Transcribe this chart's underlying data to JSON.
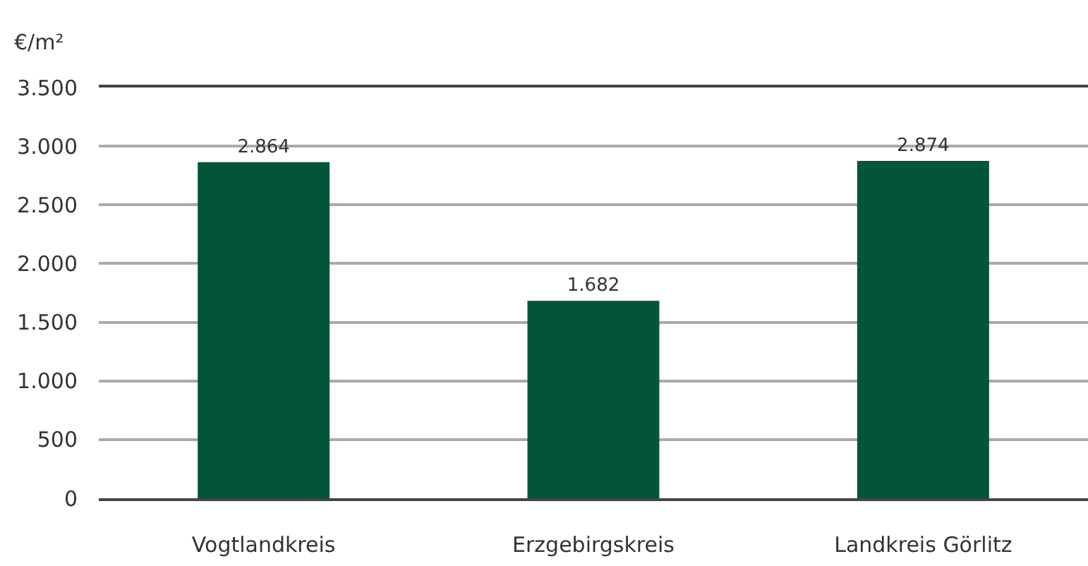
{
  "chart_data": {
    "type": "bar",
    "ylabel": "€/m²",
    "categories": [
      "Vogtlandkreis",
      "Erzgebirgskreis",
      "Landkreis Görlitz"
    ],
    "values": [
      2864,
      1682,
      2874
    ],
    "color": "#02553a",
    "value_labels": [
      "2.864",
      "1.682",
      "2.874"
    ],
    "ylim": [
      0,
      3500
    ],
    "yticks": [
      0,
      500,
      {
        "value": 1000,
        "label": "1.000"
      },
      {
        "value": 1500,
        "label": "1.500"
      },
      {
        "value": 2000,
        "label": "2.000"
      },
      {
        "value": 2500,
        "label": "2.500"
      },
      {
        "value": 3000,
        "label": "3.000"
      },
      {
        "value": 3500,
        "label": "3.500"
      }
    ],
    "grid": "y"
  }
}
